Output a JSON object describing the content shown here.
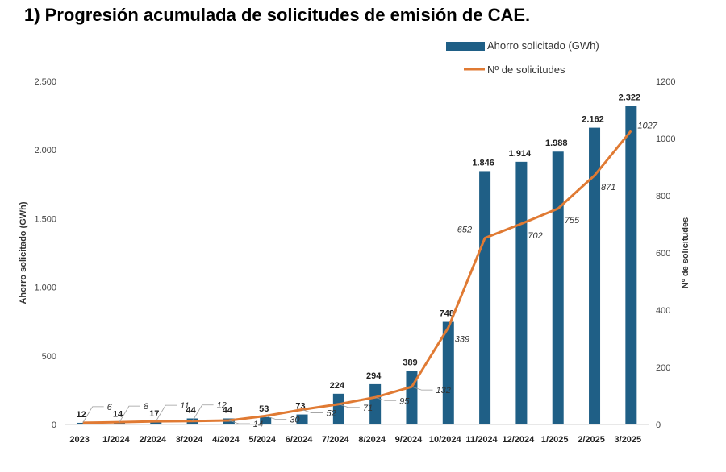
{
  "chart_data": {
    "type": "bar",
    "title": "1) Progresión acumulada de solicitudes de emisión de CAE.",
    "categories": [
      "2023",
      "1/2024",
      "2/2024",
      "3/2024",
      "4/2024",
      "5/2024",
      "6/2024",
      "7/2024",
      "8/2024",
      "9/2024",
      "10/2024",
      "11/2024",
      "12/2024",
      "1/2025",
      "2/2025",
      "3/2025"
    ],
    "series": [
      {
        "name": "Ahorro solicitado (GWh)",
        "type": "bar",
        "axis": "left",
        "color": "#1f5f86",
        "values": [
          12,
          14,
          17,
          44,
          44,
          53,
          73,
          224,
          294,
          389,
          748,
          1846,
          1914,
          1988,
          2162,
          2322
        ],
        "labels": [
          "12",
          "14",
          "17",
          "44",
          "44",
          "53",
          "73",
          "224",
          "294",
          "389",
          "748",
          "1.846",
          "1.914",
          "1.988",
          "2.162",
          "2.322"
        ]
      },
      {
        "name": "Nº de solicitudes",
        "type": "line",
        "axis": "right",
        "color": "#e07a33",
        "values": [
          6,
          8,
          11,
          12,
          14,
          30,
          52,
          71,
          95,
          132,
          339,
          652,
          702,
          755,
          871,
          1027
        ],
        "labels": [
          "6",
          "8",
          "11",
          "12",
          "14",
          "30",
          "52",
          "71",
          "95",
          "132",
          "339",
          "652",
          "702",
          "755",
          "871",
          "1027"
        ]
      }
    ],
    "ylabel": "Ahorro solicitado (GWh)",
    "ylim": [
      0,
      2500
    ],
    "yticks": [
      0,
      500,
      1000,
      1500,
      2000,
      2500
    ],
    "ytick_labels": [
      "0",
      "500",
      "1.000",
      "1.500",
      "2.000",
      "2.500"
    ],
    "y2label": "Nº de solicitudes",
    "y2lim": [
      0,
      1200
    ],
    "y2ticks": [
      0,
      200,
      400,
      600,
      800,
      1000,
      1200
    ],
    "y2tick_labels": [
      "0",
      "200",
      "400",
      "600",
      "800",
      "1000",
      "1200"
    ],
    "legend_position": "top-right",
    "grid": false
  }
}
